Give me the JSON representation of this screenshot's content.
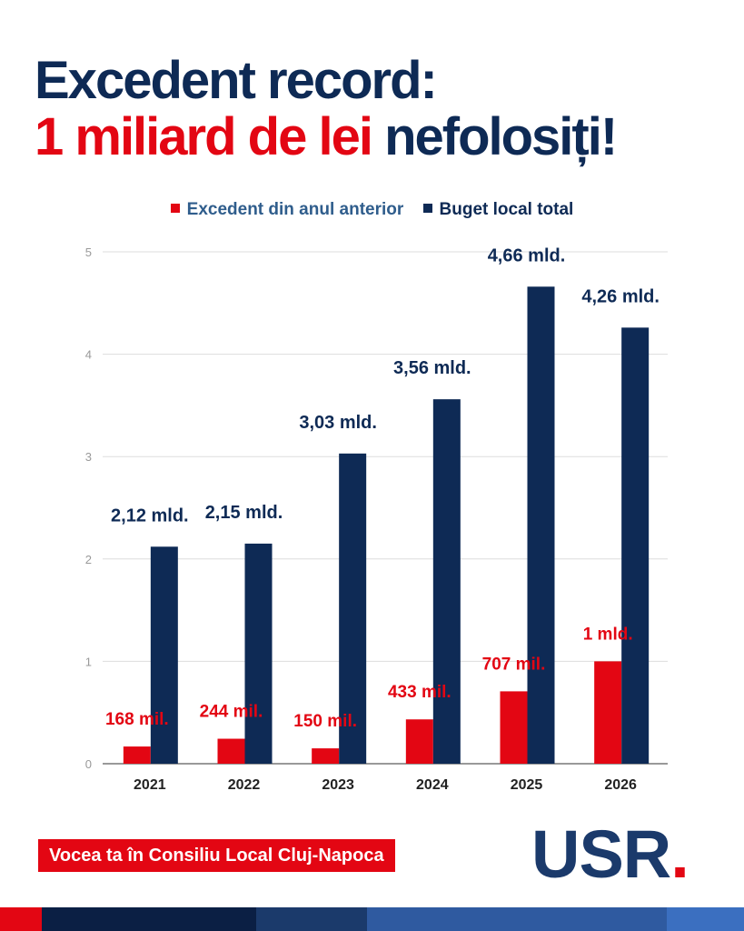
{
  "title": {
    "line1": "Excedent record:",
    "line2_red": "1 miliard de lei",
    "line2_blue": "nefolosiți!"
  },
  "colors": {
    "red": "#e30613",
    "navy": "#0e2a55",
    "grid": "#dddddd"
  },
  "chart_data": {
    "type": "bar",
    "categories": [
      "2021",
      "2022",
      "2023",
      "2024",
      "2025",
      "2026"
    ],
    "series": [
      {
        "name": "Excedent din anul anterior",
        "color": "#e30613",
        "values": [
          0.168,
          0.244,
          0.15,
          0.433,
          0.707,
          1.0
        ],
        "labels": [
          "168 mil.",
          "244 mil.",
          "150 mil.",
          "433 mil.",
          "707 mil.",
          "1 mld."
        ]
      },
      {
        "name": "Buget local total",
        "color": "#0e2a55",
        "values": [
          2.12,
          2.15,
          3.03,
          3.56,
          4.66,
          4.26
        ],
        "labels": [
          "2,12 mld.",
          "2,15 mld.",
          "3,03 mld.",
          "3,56 mld.",
          "4,66 mld.",
          "4,26 mld."
        ]
      }
    ],
    "y_ticks": [
      "0",
      "1",
      "2",
      "3",
      "4",
      "5"
    ],
    "ylim": [
      0,
      5
    ],
    "legend": "top-center",
    "grid": true
  },
  "footer": {
    "tag": "Vocea ta în Consiliu Local Cluj-Napoca"
  },
  "logo": {
    "text": "USR",
    "dot": "."
  },
  "bottom_bar_colors": [
    "#e30613",
    "#0b1f44",
    "#1b3a6b",
    "#2f5aa0",
    "#3b6fc0"
  ]
}
